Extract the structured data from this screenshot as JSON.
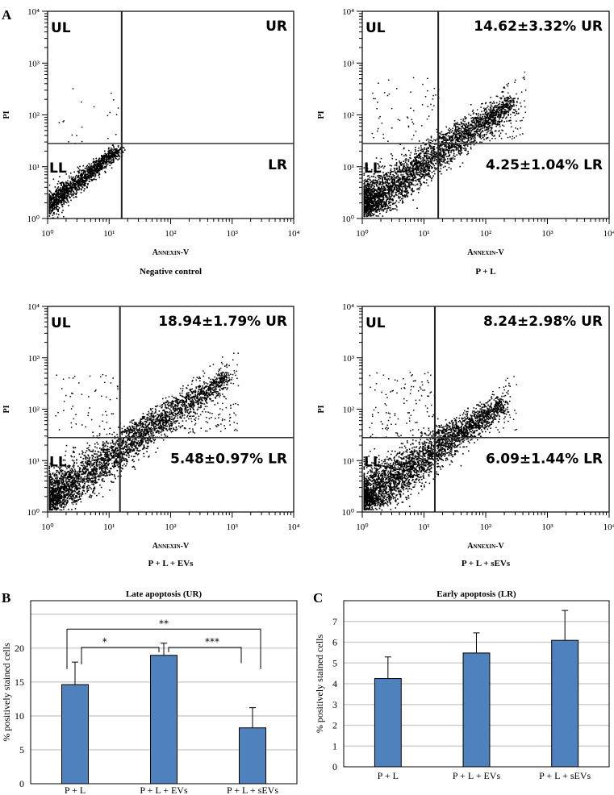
{
  "figure": {
    "panel_letters": [
      "A",
      "B",
      "C"
    ]
  },
  "chart_data": [
    {
      "type": "scatter",
      "id": "flow-negative-control",
      "title": "Negative control",
      "xlabel": "Annexin-V",
      "ylabel": "PI",
      "xscale": "log",
      "yscale": "log",
      "xlim": [
        1,
        10000
      ],
      "ylim": [
        1,
        10000
      ],
      "xticks": [
        "10⁰",
        "10¹",
        "10²",
        "10³",
        "10⁴"
      ],
      "yticks": [
        "10⁰",
        "10¹",
        "10²",
        "10³",
        "10⁴"
      ],
      "gate": {
        "x": 16,
        "y": 28
      },
      "quadrants": {
        "UL": "UL",
        "UR": "UR",
        "LL": "LL",
        "LR": "LR"
      },
      "annotations": {
        "UR": "",
        "LR": ""
      },
      "population": {
        "spread": 0.12,
        "xmax_log": 1.15,
        "density": "main",
        "ur_scatter": 0,
        "ul_scatter": 0.01
      }
    },
    {
      "type": "scatter",
      "id": "flow-p-l",
      "title": "P + L",
      "xlabel": "Annexin-V",
      "ylabel": "PI",
      "xscale": "log",
      "yscale": "log",
      "xlim": [
        1,
        10000
      ],
      "ylim": [
        1,
        10000
      ],
      "xticks": [
        "10⁰",
        "10¹",
        "10²",
        "10³",
        "10⁴"
      ],
      "yticks": [
        "10⁰",
        "10¹",
        "10²",
        "10³",
        "10⁴"
      ],
      "gate": {
        "x": 17,
        "y": 28
      },
      "quadrants": {
        "UL": "UL",
        "UR": "UR",
        "LL": "LL",
        "LR": "LR"
      },
      "annotations": {
        "UR": "14.62±3.32% UR",
        "LR": "4.25±1.04% LR"
      },
      "population": {
        "spread": 0.25,
        "xmax_log": 2.45,
        "density": "main",
        "ur_scatter": 0.146,
        "ul_scatter": 0.03
      }
    },
    {
      "type": "scatter",
      "id": "flow-p-l-evs",
      "title": "P + L + EVs",
      "xlabel": "Annexin-V",
      "ylabel": "PI",
      "xscale": "log",
      "yscale": "log",
      "xlim": [
        1,
        10000
      ],
      "ylim": [
        1,
        10000
      ],
      "xticks": [
        "10⁰",
        "10¹",
        "10²",
        "10³",
        "10⁴"
      ],
      "yticks": [
        "10⁰",
        "10¹",
        "10²",
        "10³",
        "10⁴"
      ],
      "gate": {
        "x": 15,
        "y": 28
      },
      "quadrants": {
        "UL": "UL",
        "UR": "UR",
        "LL": "LL",
        "LR": "LR"
      },
      "annotations": {
        "UR": "18.94±1.79% UR",
        "LR": "5.48±0.97% LR"
      },
      "population": {
        "spread": 0.25,
        "xmax_log": 2.9,
        "density": "main",
        "ur_scatter": 0.19,
        "ul_scatter": 0.03
      }
    },
    {
      "type": "scatter",
      "id": "flow-p-l-sevs",
      "title": "P + L + sEVs",
      "xlabel": "Annexin-V",
      "ylabel": "PI",
      "xscale": "log",
      "yscale": "log",
      "xlim": [
        1,
        10000
      ],
      "ylim": [
        1,
        10000
      ],
      "xticks": [
        "10⁰",
        "10¹",
        "10²",
        "10³",
        "10⁴"
      ],
      "yticks": [
        "10⁰",
        "10¹",
        "10²",
        "10³",
        "10⁴"
      ],
      "gate": {
        "x": 15,
        "y": 28
      },
      "quadrants": {
        "UL": "UL",
        "UR": "UR",
        "LL": "LL",
        "LR": "LR"
      },
      "annotations": {
        "UR": "8.24±2.98% UR",
        "LR": "6.09±1.44% LR"
      },
      "population": {
        "spread": 0.28,
        "xmax_log": 2.3,
        "density": "main",
        "ur_scatter": 0.08,
        "ul_scatter": 0.06
      }
    },
    {
      "type": "bar",
      "id": "late-apoptosis",
      "title": "Late apoptosis (UR)",
      "xlabel": "",
      "ylabel": "% positively stained cells",
      "categories": [
        "P + L",
        "P + L + EVs",
        "P + L + sEVs"
      ],
      "values": [
        14.62,
        18.94,
        8.24
      ],
      "errors": [
        3.32,
        1.79,
        2.98
      ],
      "ylim": [
        0,
        27
      ],
      "yticks": [
        0,
        5,
        10,
        15,
        20
      ],
      "gridlines": [
        5,
        10,
        15,
        20,
        25
      ],
      "grid": true,
      "bar_color": "#4f81bd",
      "significance": [
        {
          "from": 0,
          "to": 1,
          "label": "*"
        },
        {
          "from": 0,
          "to": 2,
          "label": "**"
        },
        {
          "from": 1,
          "to": 2,
          "label": "***"
        }
      ]
    },
    {
      "type": "bar",
      "id": "early-apoptosis",
      "title": "Early apoptosis (LR)",
      "xlabel": "",
      "ylabel": "% positively stained cells",
      "categories": [
        "P + L",
        "P + L + EVs",
        "P + L + sEVs"
      ],
      "values": [
        4.25,
        5.48,
        6.09
      ],
      "errors": [
        1.04,
        0.97,
        1.44
      ],
      "ylim": [
        0,
        8
      ],
      "yticks": [
        0,
        1,
        2,
        3,
        4,
        5,
        6,
        7
      ],
      "gridlines": [
        1,
        2,
        3,
        4,
        5,
        6,
        7
      ],
      "grid": true,
      "bar_color": "#4f81bd",
      "significance": []
    }
  ]
}
